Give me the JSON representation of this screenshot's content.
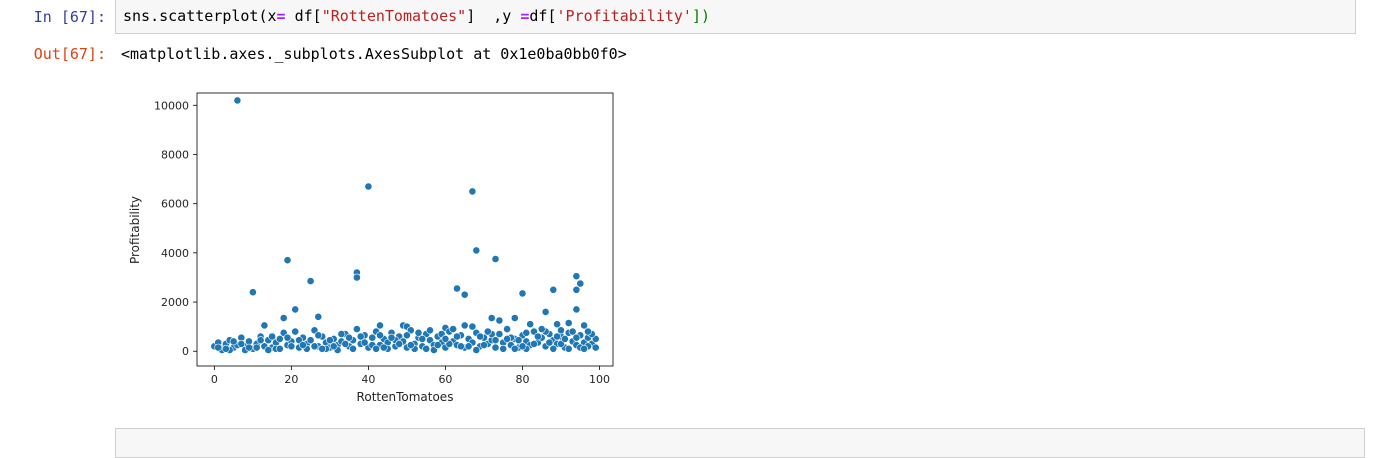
{
  "input_cell": {
    "prompt": "In [67]:",
    "code": {
      "fn": "sns.scatterplot(",
      "x_kw": "x",
      "eq": "=",
      "df1": " df[",
      "str1": "\"RottenTomatoes\"",
      "mid": "]  ,y ",
      "eq2": "=",
      "df2": "df[",
      "str2": "'Profitability'",
      "end": "])"
    }
  },
  "output_cell": {
    "prompt": "Out[67]:",
    "text": "<matplotlib.axes._subplots.AxesSubplot at 0x1e0ba0bb0f0>"
  },
  "chart_data": {
    "type": "scatter",
    "xlabel": "RottenTomatoes",
    "ylabel": "Profitability",
    "xlim": [
      -4.5,
      103.5
    ],
    "ylim": [
      -600,
      10500
    ],
    "xticks": [
      "0",
      "20",
      "40",
      "60",
      "80",
      "100"
    ],
    "yticks": [
      "0",
      "2000",
      "4000",
      "6000",
      "8000",
      "10000"
    ],
    "point_color": "#1f77b4",
    "points": [
      [
        6,
        10200
      ],
      [
        40,
        6700
      ],
      [
        67,
        6500
      ],
      [
        68,
        4100
      ],
      [
        19,
        3700
      ],
      [
        73,
        3750
      ],
      [
        37,
        3200
      ],
      [
        37,
        3000
      ],
      [
        94,
        3050
      ],
      [
        95,
        2750
      ],
      [
        94,
        2500
      ],
      [
        25,
        2850
      ],
      [
        10,
        2400
      ],
      [
        63,
        2550
      ],
      [
        65,
        2300
      ],
      [
        80,
        2350
      ],
      [
        88,
        2500
      ],
      [
        21,
        1700
      ],
      [
        94,
        1700
      ],
      [
        27,
        1400
      ],
      [
        18,
        1350
      ],
      [
        72,
        1350
      ],
      [
        74,
        1250
      ],
      [
        78,
        1350
      ],
      [
        86,
        1600
      ],
      [
        13,
        1050
      ],
      [
        43,
        1050
      ],
      [
        49,
        1050
      ],
      [
        50,
        1000
      ],
      [
        60,
        950
      ],
      [
        65,
        1050
      ],
      [
        67,
        1000
      ],
      [
        82,
        1100
      ],
      [
        89,
        1100
      ],
      [
        92,
        1150
      ],
      [
        96,
        1050
      ],
      [
        0,
        200
      ],
      [
        1,
        350
      ],
      [
        2,
        100
      ],
      [
        3,
        300
      ],
      [
        4,
        450
      ],
      [
        5,
        150
      ],
      [
        6,
        250
      ],
      [
        7,
        550
      ],
      [
        8,
        200
      ],
      [
        9,
        400
      ],
      [
        10,
        100
      ],
      [
        11,
        300
      ],
      [
        12,
        600
      ],
      [
        13,
        200
      ],
      [
        14,
        450
      ],
      [
        15,
        150
      ],
      [
        16,
        350
      ],
      [
        17,
        500
      ],
      [
        18,
        750
      ],
      [
        19,
        250
      ],
      [
        20,
        400
      ],
      [
        21,
        800
      ],
      [
        22,
        150
      ],
      [
        23,
        550
      ],
      [
        24,
        300
      ],
      [
        25,
        450
      ],
      [
        26,
        850
      ],
      [
        27,
        200
      ],
      [
        28,
        600
      ],
      [
        29,
        350
      ],
      [
        30,
        150
      ],
      [
        31,
        500
      ],
      [
        32,
        250
      ],
      [
        33,
        400
      ],
      [
        34,
        700
      ],
      [
        35,
        200
      ],
      [
        36,
        450
      ],
      [
        37,
        900
      ],
      [
        38,
        300
      ],
      [
        39,
        650
      ],
      [
        40,
        150
      ],
      [
        41,
        550
      ],
      [
        42,
        800
      ],
      [
        43,
        250
      ],
      [
        44,
        500
      ],
      [
        45,
        350
      ],
      [
        46,
        750
      ],
      [
        47,
        200
      ],
      [
        48,
        600
      ],
      [
        49,
        400
      ],
      [
        50,
        150
      ],
      [
        51,
        850
      ],
      [
        52,
        300
      ],
      [
        53,
        550
      ],
      [
        54,
        200
      ],
      [
        55,
        700
      ],
      [
        56,
        450
      ],
      [
        57,
        250
      ],
      [
        58,
        600
      ],
      [
        59,
        350
      ],
      [
        60,
        150
      ],
      [
        61,
        800
      ],
      [
        62,
        400
      ],
      [
        63,
        250
      ],
      [
        64,
        650
      ],
      [
        65,
        150
      ],
      [
        66,
        500
      ],
      [
        67,
        350
      ],
      [
        68,
        750
      ],
      [
        69,
        200
      ],
      [
        70,
        550
      ],
      [
        71,
        300
      ],
      [
        72,
        450
      ],
      [
        73,
        150
      ],
      [
        74,
        700
      ],
      [
        75,
        350
      ],
      [
        76,
        900
      ],
      [
        77,
        250
      ],
      [
        78,
        500
      ],
      [
        79,
        150
      ],
      [
        80,
        650
      ],
      [
        81,
        400
      ],
      [
        82,
        250
      ],
      [
        83,
        800
      ],
      [
        84,
        350
      ],
      [
        85,
        550
      ],
      [
        86,
        200
      ],
      [
        87,
        700
      ],
      [
        88,
        450
      ],
      [
        89,
        300
      ],
      [
        90,
        600
      ],
      [
        91,
        150
      ],
      [
        92,
        750
      ],
      [
        93,
        400
      ],
      [
        94,
        250
      ],
      [
        95,
        650
      ],
      [
        96,
        350
      ],
      [
        97,
        550
      ],
      [
        98,
        300
      ],
      [
        99,
        500
      ],
      [
        2,
        50
      ],
      [
        5,
        400
      ],
      [
        8,
        50
      ],
      [
        11,
        150
      ],
      [
        14,
        50
      ],
      [
        16,
        100
      ],
      [
        19,
        550
      ],
      [
        22,
        450
      ],
      [
        24,
        100
      ],
      [
        27,
        650
      ],
      [
        29,
        100
      ],
      [
        32,
        50
      ],
      [
        34,
        300
      ],
      [
        36,
        100
      ],
      [
        38,
        600
      ],
      [
        41,
        250
      ],
      [
        43,
        650
      ],
      [
        45,
        100
      ],
      [
        47,
        450
      ],
      [
        50,
        650
      ],
      [
        52,
        100
      ],
      [
        54,
        500
      ],
      [
        57,
        50
      ],
      [
        59,
        700
      ],
      [
        61,
        300
      ],
      [
        63,
        600
      ],
      [
        66,
        200
      ],
      [
        68,
        50
      ],
      [
        70,
        250
      ],
      [
        72,
        700
      ],
      [
        75,
        100
      ],
      [
        77,
        550
      ],
      [
        79,
        450
      ],
      [
        81,
        100
      ],
      [
        83,
        300
      ],
      [
        84,
        600
      ],
      [
        86,
        800
      ],
      [
        88,
        100
      ],
      [
        90,
        300
      ],
      [
        92,
        100
      ],
      [
        93,
        800
      ],
      [
        95,
        150
      ],
      [
        97,
        200
      ],
      [
        98,
        700
      ],
      [
        99,
        150
      ],
      [
        90,
        850
      ],
      [
        85,
        900
      ],
      [
        81,
        750
      ],
      [
        76,
        500
      ],
      [
        71,
        800
      ],
      [
        62,
        900
      ],
      [
        58,
        250
      ],
      [
        53,
        750
      ],
      [
        48,
        300
      ],
      [
        44,
        150
      ],
      [
        39,
        350
      ],
      [
        33,
        700
      ],
      [
        30,
        450
      ],
      [
        26,
        200
      ],
      [
        23,
        250
      ],
      [
        20,
        200
      ],
      [
        17,
        100
      ],
      [
        12,
        450
      ],
      [
        9,
        150
      ],
      [
        4,
        50
      ],
      [
        1,
        150
      ],
      [
        3,
        100
      ],
      [
        7,
        300
      ],
      [
        15,
        600
      ],
      [
        28,
        100
      ],
      [
        31,
        200
      ],
      [
        35,
        550
      ],
      [
        42,
        100
      ],
      [
        46,
        550
      ],
      [
        51,
        250
      ],
      [
        55,
        100
      ],
      [
        56,
        850
      ],
      [
        60,
        500
      ],
      [
        64,
        200
      ],
      [
        69,
        600
      ],
      [
        73,
        450
      ],
      [
        78,
        100
      ],
      [
        80,
        200
      ],
      [
        87,
        350
      ],
      [
        89,
        600
      ],
      [
        91,
        500
      ],
      [
        94,
        550
      ],
      [
        96,
        100
      ],
      [
        97,
        800
      ]
    ]
  }
}
